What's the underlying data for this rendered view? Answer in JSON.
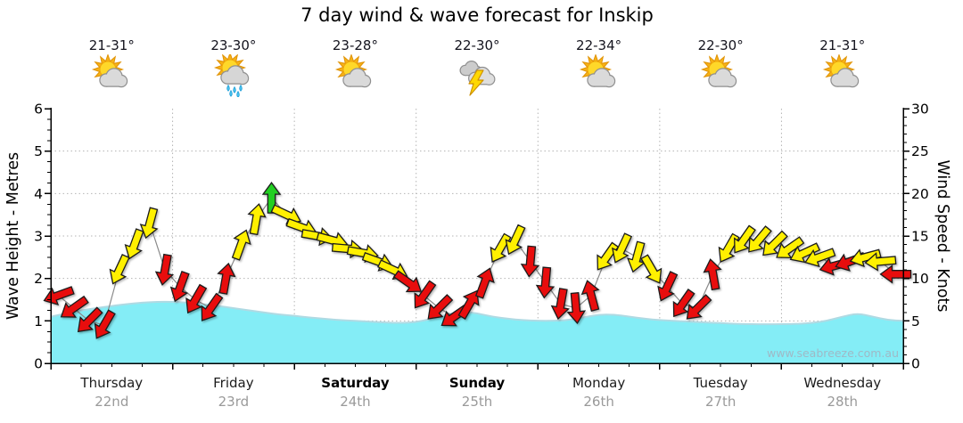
{
  "title": "7 day wind & wave forecast for Inskip",
  "watermark": "www.seabreeze.com.au",
  "days": [
    {
      "name": "Thursday",
      "date": "22nd",
      "temp_range": "21-31°",
      "icon": "sun-cloud",
      "weekend": false
    },
    {
      "name": "Friday",
      "date": "23rd",
      "temp_range": "23-30°",
      "icon": "sun-cloud-rain",
      "weekend": false
    },
    {
      "name": "Saturday",
      "date": "24th",
      "temp_range": "23-28°",
      "icon": "sun-cloud",
      "weekend": true
    },
    {
      "name": "Sunday",
      "date": "25th",
      "temp_range": "22-30°",
      "icon": "storm",
      "weekend": true
    },
    {
      "name": "Monday",
      "date": "26th",
      "temp_range": "22-34°",
      "icon": "sun-cloud",
      "weekend": false
    },
    {
      "name": "Tuesday",
      "date": "27th",
      "temp_range": "22-30°",
      "icon": "sun-cloud",
      "weekend": false
    },
    {
      "name": "Wednesday",
      "date": "28th",
      "temp_range": "21-31°",
      "icon": "sun-cloud",
      "weekend": false
    }
  ],
  "chart_data": {
    "type": "area+wind-arrows",
    "wave_axis": {
      "label": "Wave Height - Metres",
      "min": 0,
      "max": 6,
      "major_ticks": [
        0,
        1,
        2,
        3,
        4,
        5,
        6
      ],
      "minor_step": 0.25
    },
    "wind_axis": {
      "label": "Wind Speed - Knots",
      "min": 0,
      "max": 30,
      "major_ticks": [
        0,
        5,
        10,
        15,
        20,
        25,
        30
      ],
      "minor_step": 1
    },
    "time_step_hours": 3,
    "wave_height_m": [
      1.1,
      1.18,
      1.25,
      1.3,
      1.35,
      1.4,
      1.43,
      1.45,
      1.45,
      1.43,
      1.4,
      1.35,
      1.3,
      1.25,
      1.2,
      1.15,
      1.12,
      1.08,
      1.05,
      1.02,
      1.0,
      0.98,
      0.96,
      0.95,
      0.97,
      1.05,
      1.15,
      1.22,
      1.18,
      1.1,
      1.05,
      1.02,
      1.0,
      1.0,
      1.02,
      1.08,
      1.15,
      1.15,
      1.1,
      1.05,
      1.02,
      1.0,
      0.98,
      0.96,
      0.95,
      0.93,
      0.92,
      0.92,
      0.92,
      0.93,
      0.95,
      1.0,
      1.1,
      1.18,
      1.1,
      1.02,
      1.0
    ],
    "wind_format": [
      "knots",
      "direction_deg_arrow_points_to",
      "color r=red y=yellow g=green"
    ],
    "wind_per_day": [
      [
        [
          8,
          250,
          "r"
        ],
        [
          6.5,
          235,
          "r"
        ],
        [
          5,
          225,
          "r"
        ],
        [
          4.5,
          210,
          "r"
        ],
        [
          11,
          205,
          "y"
        ],
        [
          14,
          200,
          "y"
        ],
        [
          16.5,
          195,
          "y"
        ],
        [
          11,
          190,
          "r"
        ]
      ],
      [
        [
          9,
          200,
          "r"
        ],
        [
          7.5,
          210,
          "r"
        ],
        [
          6.5,
          215,
          "r"
        ],
        [
          10,
          10,
          "r"
        ],
        [
          14,
          20,
          "y"
        ],
        [
          17,
          10,
          "y"
        ],
        [
          19.5,
          0,
          "g"
        ],
        [
          17.5,
          115,
          "y"
        ]
      ],
      [
        [
          16,
          110,
          "y"
        ],
        [
          15,
          100,
          "y"
        ],
        [
          14.5,
          105,
          "y"
        ],
        [
          13.5,
          95,
          "y"
        ],
        [
          13,
          100,
          "y"
        ],
        [
          12,
          110,
          "y"
        ],
        [
          11,
          115,
          "y"
        ],
        [
          9.5,
          125,
          "r"
        ]
      ],
      [
        [
          8,
          215,
          "r"
        ],
        [
          6.5,
          225,
          "r"
        ],
        [
          5.5,
          235,
          "r"
        ],
        [
          7,
          30,
          "r"
        ],
        [
          9.5,
          20,
          "r"
        ],
        [
          13.5,
          210,
          "y"
        ],
        [
          14.5,
          205,
          "y"
        ],
        [
          12,
          185,
          "r"
        ]
      ],
      [
        [
          9.5,
          185,
          "r"
        ],
        [
          7,
          190,
          "r"
        ],
        [
          6.5,
          175,
          "r"
        ],
        [
          8,
          345,
          "r"
        ],
        [
          12.5,
          215,
          "y"
        ],
        [
          13.5,
          205,
          "y"
        ],
        [
          12.5,
          195,
          "y"
        ],
        [
          11,
          150,
          "y"
        ]
      ],
      [
        [
          9,
          205,
          "r"
        ],
        [
          7,
          215,
          "r"
        ],
        [
          6.5,
          225,
          "r"
        ],
        [
          10.5,
          350,
          "r"
        ],
        [
          13.5,
          210,
          "y"
        ],
        [
          14.5,
          215,
          "y"
        ],
        [
          14.5,
          220,
          "y"
        ],
        [
          14,
          225,
          "y"
        ]
      ],
      [
        [
          13.5,
          235,
          "y"
        ],
        [
          13,
          245,
          "y"
        ],
        [
          12.5,
          250,
          "y"
        ],
        [
          11.5,
          255,
          "r"
        ],
        [
          12,
          250,
          "r"
        ],
        [
          12.5,
          255,
          "y"
        ],
        [
          12,
          265,
          "y"
        ],
        [
          10.5,
          270,
          "r"
        ]
      ]
    ],
    "colors": {
      "wave_fill": "#84EDF6",
      "wave_edge": "#AFDAE3",
      "wind_red": "#E80F0F",
      "wind_yellow": "#FFF000",
      "wind_green": "#23CE23",
      "grid": "#B4B4B4",
      "axis": "#000000",
      "date_text": "#9A9A9A",
      "watermark": "#9FB9C6"
    }
  }
}
